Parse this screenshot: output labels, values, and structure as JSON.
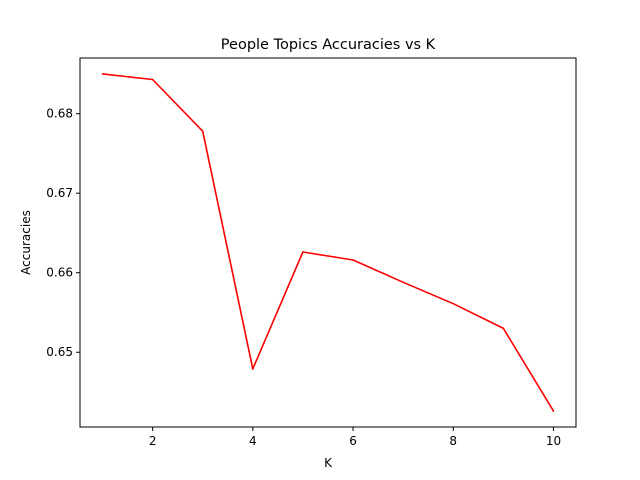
{
  "chart_data": {
    "type": "line",
    "title": "People Topics Accuracies vs K",
    "xlabel": "K",
    "ylabel": "Accuracies",
    "xlim": [
      0.55,
      10.45
    ],
    "ylim": [
      0.6406,
      0.687
    ],
    "x_ticks": [
      2,
      4,
      6,
      8,
      10
    ],
    "x_tick_labels": [
      "2",
      "4",
      "6",
      "8",
      "10"
    ],
    "y_ticks": [
      0.65,
      0.66,
      0.67,
      0.68
    ],
    "y_tick_labels": [
      "0.65",
      "0.66",
      "0.67",
      "0.68"
    ],
    "grid": false,
    "legend": "none",
    "series": [
      {
        "color": "#ff0000",
        "x": [
          1,
          2,
          3,
          4,
          5,
          6,
          7,
          8,
          9,
          10
        ],
        "y": [
          0.685,
          0.6843,
          0.6778,
          0.6479,
          0.6626,
          0.6616,
          0.6588,
          0.6561,
          0.653,
          0.6426
        ]
      }
    ]
  }
}
